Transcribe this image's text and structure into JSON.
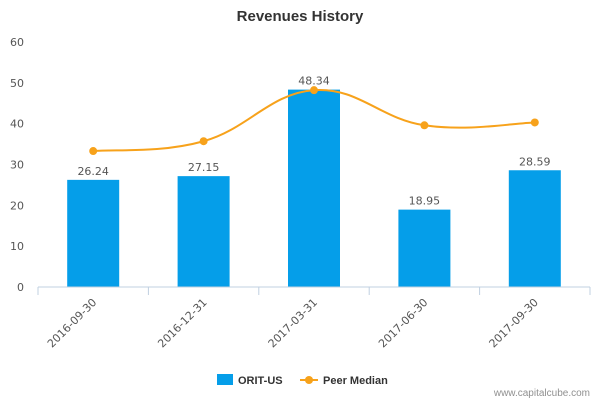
{
  "colors": {
    "bar": "#059ee9",
    "line": "#f7a21b",
    "axis": "#c0d0e0",
    "text": "#333333"
  },
  "credit": "www.capitalcube.com",
  "chart_data": {
    "type": "bar",
    "title": "Revenues History",
    "categories": [
      "2016-09-30",
      "2016-12-31",
      "2017-03-31",
      "2017-06-30",
      "2017-09-30"
    ],
    "ylim": [
      0,
      60
    ],
    "yticks": [
      0,
      10,
      20,
      30,
      40,
      50,
      60
    ],
    "grid": false,
    "legend_position": "bottom",
    "series": [
      {
        "name": "ORIT-US",
        "type": "bar",
        "values": [
          26.24,
          27.15,
          48.34,
          18.95,
          28.59
        ],
        "labels": [
          "26.24",
          "27.15",
          "48.34",
          "18.95",
          "28.59"
        ]
      },
      {
        "name": "Peer Median",
        "type": "line",
        "smooth": true,
        "values": [
          33.3,
          35.7,
          48.2,
          39.6,
          40.3
        ]
      }
    ]
  }
}
